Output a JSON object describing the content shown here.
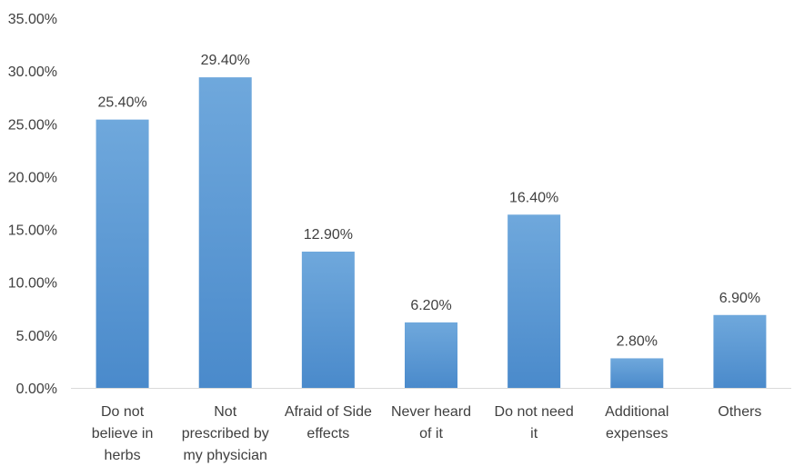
{
  "chart_data": {
    "type": "bar",
    "title": "",
    "xlabel": "",
    "ylabel": "",
    "ylim": [
      0,
      35
    ],
    "y_ticks": [
      "0.00%",
      "5.00%",
      "10.00%",
      "15.00%",
      "20.00%",
      "25.00%",
      "30.00%",
      "35.00%"
    ],
    "grid": false,
    "legend": "none",
    "bar_color": "#5B9BD5",
    "categories": [
      "Do not believe in herbs",
      "Not prescribed by my physician",
      "Afraid of Side effects",
      "Never heard of it",
      "Do not need it",
      "Additional expenses",
      "Others"
    ],
    "category_lines": [
      [
        "Do not",
        "believe in",
        "herbs"
      ],
      [
        "Not",
        "prescribed by",
        "my physician"
      ],
      [
        "Afraid of Side",
        "effects"
      ],
      [
        "Never heard",
        "of it"
      ],
      [
        "Do not need",
        "it"
      ],
      [
        "Additional",
        "expenses"
      ],
      [
        "Others"
      ]
    ],
    "values": [
      25.4,
      29.4,
      12.9,
      6.2,
      16.4,
      2.8,
      6.9
    ],
    "data_labels": [
      "25.40%",
      "29.40%",
      "12.90%",
      "6.20%",
      "16.40%",
      "2.80%",
      "6.90%"
    ]
  }
}
